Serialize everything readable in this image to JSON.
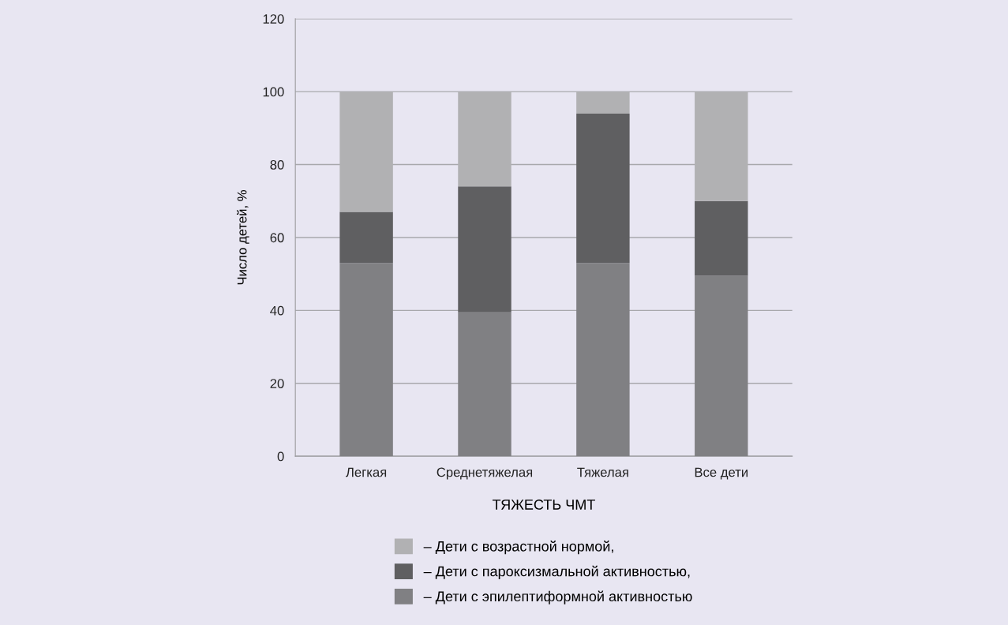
{
  "chart_data": {
    "type": "bar",
    "stacked": true,
    "xlabel": "ТЯЖЕСТЬ ЧМТ",
    "ylabel": "Число детей, %",
    "categories": [
      "Легкая",
      "Среднетяжелая",
      "Тяжелая",
      "Все дети"
    ],
    "series": [
      {
        "name": "– Дети с эпилептиформной активностью",
        "color": "#808083",
        "values": [
          53,
          39.5,
          53,
          49.5
        ]
      },
      {
        "name": "– Дети с пароксизмальной активностью,",
        "color": "#5f5f61",
        "values": [
          14,
          34.5,
          41,
          20.5
        ]
      },
      {
        "name": "– Дети с возрастной нормой,",
        "color": "#b1b1b3",
        "values": [
          33,
          26,
          6,
          30
        ]
      }
    ],
    "ylim": [
      0,
      120
    ],
    "yticks": [
      0,
      20,
      40,
      60,
      80,
      100,
      120
    ],
    "grid": "y",
    "legend": "bottom"
  }
}
